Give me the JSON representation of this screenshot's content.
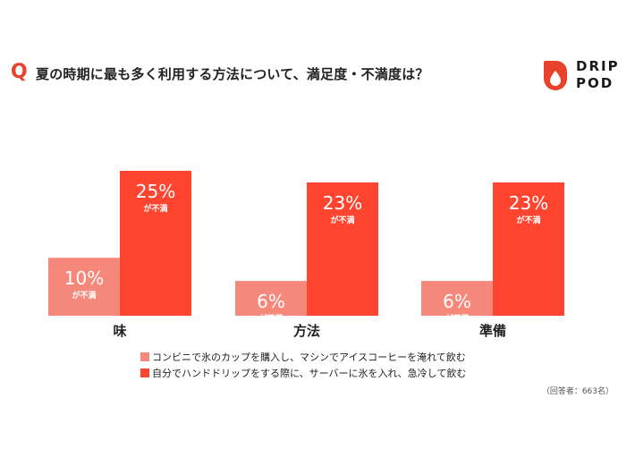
{
  "header": {
    "q_mark": "Q",
    "title": "夏の時期に最も多く利用する方法について、満足度・不満度は？"
  },
  "logo": {
    "line1": "DRIP",
    "line2": "POD",
    "icon": "drip-pod-drop-icon"
  },
  "colors": {
    "accent": "#e8412c",
    "series_light": "#f5887a",
    "series_dark": "#ff4530"
  },
  "chart_data": {
    "type": "bar",
    "categories": [
      "味",
      "方法",
      "準備"
    ],
    "series": [
      {
        "name": "コンビニで氷のカップを購入し、マシンでアイスコーヒーを淹れて飲む",
        "values": [
          10,
          6,
          6
        ],
        "color": "#f5887a"
      },
      {
        "name": "自分でハンドドリップをする際に、サーバーに氷を入れ、急冷して飲む",
        "values": [
          25,
          23,
          23
        ],
        "color": "#ff4530"
      }
    ],
    "value_suffix": "%",
    "value_sublabel": "が不満",
    "ylim": [
      0,
      25
    ],
    "grid": false,
    "legend": "bottom"
  },
  "note": "（回答者：663名）"
}
